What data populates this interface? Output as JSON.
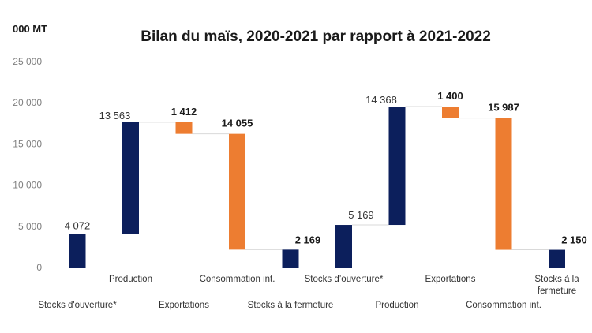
{
  "chart_data": {
    "type": "waterfall",
    "title": "Bilan du maïs, 2020-2021 par rapport à 2021-2022",
    "unit_label": "000 MT",
    "ylim": [
      0,
      25000
    ],
    "yticks": [
      "0",
      "5 000",
      "10 000",
      "15 000",
      "20 000",
      "25 000"
    ],
    "ytick_values": [
      0,
      5000,
      10000,
      15000,
      20000,
      25000
    ],
    "colors": {
      "positive": "#0c1f5c",
      "negative": "#ed7d31"
    },
    "steps": [
      {
        "category": "Stocks d'ouverture*",
        "category_lines": [
          "Stocks d'ouverture*"
        ],
        "label_row": "lower",
        "value": 4072,
        "label": "4 072",
        "kind": "total",
        "bold_label": false
      },
      {
        "category": "Production",
        "category_lines": [
          "Production"
        ],
        "label_row": "upper",
        "value": 13563,
        "label": "13 563",
        "kind": "increase",
        "bold_label": false
      },
      {
        "category": "Exportations",
        "category_lines": [
          "Exportations"
        ],
        "label_row": "lower",
        "value": 1412,
        "label": "1 412",
        "kind": "decrease",
        "bold_label": true
      },
      {
        "category": "Consommation int.",
        "category_lines": [
          "Consommation int."
        ],
        "label_row": "upper",
        "value": 14055,
        "label": "14 055",
        "kind": "decrease",
        "bold_label": true
      },
      {
        "category": "Stocks à la fermeture",
        "category_lines": [
          "Stocks à la fermeture"
        ],
        "label_row": "lower",
        "value": 2169,
        "label": "2 169",
        "kind": "total",
        "bold_label": true
      },
      {
        "category": "Stocks d'ouverture*",
        "category_lines": [
          "Stocks d’ouverture*"
        ],
        "label_row": "upper",
        "value": 5169,
        "label": "5 169",
        "kind": "total",
        "bold_label": false
      },
      {
        "category": "Production",
        "category_lines": [
          "Production"
        ],
        "label_row": "lower",
        "value": 14368,
        "label": "14 368",
        "kind": "increase",
        "bold_label": false
      },
      {
        "category": "Exportations",
        "category_lines": [
          "Exportations"
        ],
        "label_row": "upper",
        "value": 1400,
        "label": "1 400",
        "kind": "decrease",
        "bold_label": true
      },
      {
        "category": "Consommation int.",
        "category_lines": [
          "Consommation int."
        ],
        "label_row": "lower",
        "value": 15987,
        "label": "15 987",
        "kind": "decrease",
        "bold_label": true
      },
      {
        "category": "Stocks à la fermeture",
        "category_lines": [
          "Stocks à la",
          "fermeture"
        ],
        "label_row": "upper",
        "value": 2150,
        "label": "2 150",
        "kind": "total",
        "bold_label": true
      }
    ]
  }
}
